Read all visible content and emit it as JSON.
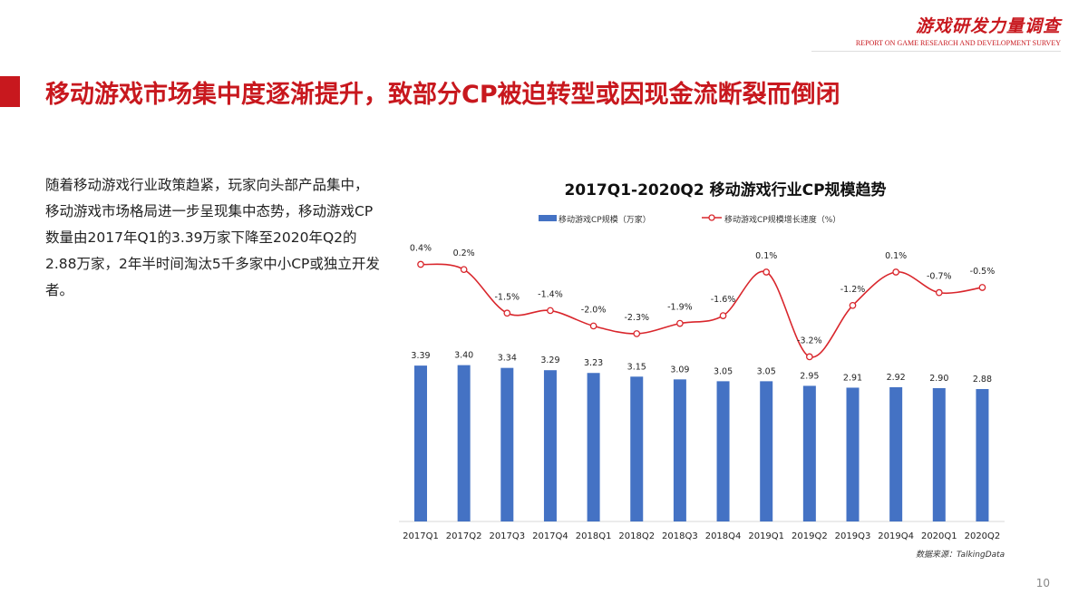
{
  "header": {
    "brand": "游戏研发力量调查",
    "brand_sub": "REPORT ON GAME RESEARCH AND DEVELOPMENT SURVEY"
  },
  "title": "移动游戏市场集中度逐渐提升，致部分CP被迫转型或因现金流断裂而倒闭",
  "body_text": "随着移动游戏行业政策趋紧，玩家向头部产品集中，移动游戏市场格局进一步呈现集中态势，移动游戏CP数量由2017年Q1的3.39万家下降至2020年Q2的2.88万家，2年半时间淘汰5千多家中小CP或独立开发者。",
  "source": "数据来源：TalkingData",
  "page_number": "10",
  "chart_data": {
    "type": "bar+line",
    "title": "2017Q1-2020Q2  移动游戏行业CP规模趋势",
    "categories": [
      "2017Q1",
      "2017Q2",
      "2017Q3",
      "2017Q4",
      "2018Q1",
      "2018Q2",
      "2018Q3",
      "2018Q4",
      "2019Q1",
      "2019Q2",
      "2019Q3",
      "2019Q4",
      "2020Q1",
      "2020Q2"
    ],
    "legend_placement": "top",
    "grid": false,
    "series": [
      {
        "name": "移动游戏CP规模（万家）",
        "type": "bar",
        "color": "#4472c4",
        "values": [
          3.39,
          3.4,
          3.34,
          3.29,
          3.23,
          3.15,
          3.09,
          3.05,
          3.05,
          2.95,
          2.91,
          2.92,
          2.9,
          2.88
        ],
        "labels": [
          "3.39",
          "3.40",
          "3.34",
          "3.29",
          "3.23",
          "3.15",
          "3.09",
          "3.05",
          "3.05",
          "2.95",
          "2.91",
          "2.92",
          "2.90",
          "2.88"
        ]
      },
      {
        "name": "移动游戏CP规模增长速度（%）",
        "type": "line",
        "color": "#d9262c",
        "values": [
          0.4,
          0.2,
          -1.5,
          -1.4,
          -2.0,
          -2.3,
          -1.9,
          -1.6,
          0.1,
          -3.2,
          -1.2,
          0.1,
          -0.7,
          -0.5
        ],
        "labels": [
          "0.4%",
          "0.2%",
          "-1.5%",
          "-1.4%",
          "-2.0%",
          "-2.3%",
          "-1.9%",
          "-1.6%",
          "0.1%",
          "-3.2%",
          "-1.2%",
          "0.1%",
          "-0.7%",
          "-0.5%"
        ]
      }
    ]
  }
}
